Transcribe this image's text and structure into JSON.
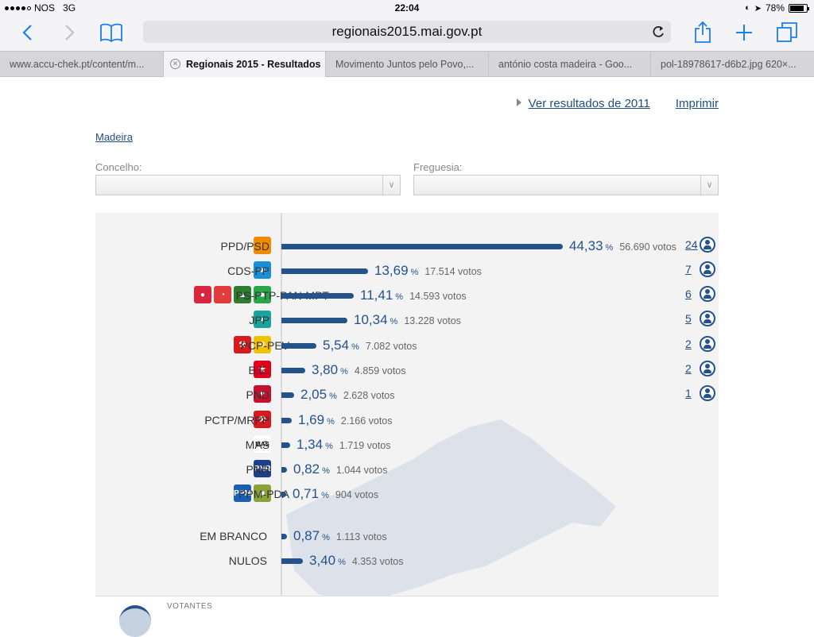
{
  "status": {
    "carrier": "NOS",
    "network": "3G",
    "time": "22:04",
    "battery": "78%"
  },
  "browser": {
    "url": "regionais2015.mai.gov.pt",
    "tabs": [
      {
        "label": "www.accu-chek.pt/content/m..."
      },
      {
        "label": "Regionais 2015 - Resultados"
      },
      {
        "label": "Movimento Juntos pelo Povo,..."
      },
      {
        "label": "antónio costa madeira - Goo..."
      },
      {
        "label": "pol-18978617-d6b2.jpg 620×..."
      }
    ]
  },
  "page": {
    "link_2011": "Ver resultados de 2011",
    "print": "Imprimir",
    "breadcrumb": "Madeira",
    "concelho_label": "Concelho:",
    "freguesia_label": "Freguesia:"
  },
  "results": {
    "pct_sign": "%",
    "rows": [
      {
        "party": "PPD/PSD",
        "pct": "44,33",
        "pct_value": 44.33,
        "votes": "56.690 votos",
        "seats": "24"
      },
      {
        "party": "CDS-PP",
        "pct": "13,69",
        "pct_value": 13.69,
        "votes": "17.514 votos",
        "seats": "7"
      },
      {
        "party": "PS-PTP-PAN-MPT",
        "pct": "11,41",
        "pct_value": 11.41,
        "votes": "14.593 votos",
        "seats": "6"
      },
      {
        "party": "JPP",
        "pct": "10,34",
        "pct_value": 10.34,
        "votes": "13.228 votos",
        "seats": "5"
      },
      {
        "party": "PCP-PEV",
        "pct": "5,54",
        "pct_value": 5.54,
        "votes": "7.082 votos",
        "seats": "2"
      },
      {
        "party": "B.E.",
        "pct": "3,80",
        "pct_value": 3.8,
        "votes": "4.859 votos",
        "seats": "2"
      },
      {
        "party": "PND",
        "pct": "2,05",
        "pct_value": 2.05,
        "votes": "2.628 votos",
        "seats": "1"
      },
      {
        "party": "PCTP/MRPP",
        "pct": "1,69",
        "pct_value": 1.69,
        "votes": "2.166 votos",
        "seats": ""
      },
      {
        "party": "MAS",
        "pct": "1,34",
        "pct_value": 1.34,
        "votes": "1.719 votos",
        "seats": ""
      },
      {
        "party": "PNR",
        "pct": "0,82",
        "pct_value": 0.82,
        "votes": "1.044 votos",
        "seats": ""
      },
      {
        "party": "PPM-PDA",
        "pct": "0,71",
        "pct_value": 0.71,
        "votes": "904 votos",
        "seats": ""
      },
      {
        "party": "EM BRANCO",
        "pct": "0,87",
        "pct_value": 0.87,
        "votes": "1.113 votos",
        "seats": ""
      },
      {
        "party": "NULOS",
        "pct": "3,40",
        "pct_value": 3.4,
        "votes": "4.353 votos",
        "seats": ""
      }
    ],
    "votantes_label": "VOTANTES"
  },
  "colors": {
    "bar": "#24528a",
    "link": "#1f4e85"
  }
}
